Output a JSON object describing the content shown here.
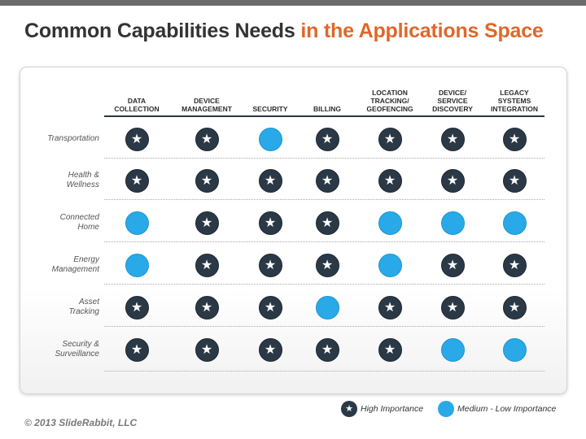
{
  "title": {
    "part1": "Common Capabilities Needs",
    "part2": "in the Applications Space"
  },
  "columns": [
    {
      "label": "DATA\nCOLLECTION"
    },
    {
      "label": "DEVICE\nMANAGEMENT"
    },
    {
      "label": "SECURITY"
    },
    {
      "label": "BILLING"
    },
    {
      "label": "LOCATION\nTRACKING/\nGEOFENCING"
    },
    {
      "label": "DEVICE/\nSERVICE\nDISCOVERY"
    },
    {
      "label": "LEGACY\nSYSTEMS\nINTEGRATION"
    }
  ],
  "rows": [
    {
      "label": "Transportation",
      "values": [
        "high",
        "high",
        "medium",
        "high",
        "high",
        "high",
        "high"
      ]
    },
    {
      "label": "Health &\nWellness",
      "values": [
        "high",
        "high",
        "high",
        "high",
        "high",
        "high",
        "high"
      ]
    },
    {
      "label": "Connected\nHome",
      "values": [
        "medium",
        "high",
        "high",
        "high",
        "medium",
        "medium",
        "medium"
      ]
    },
    {
      "label": "Energy\nManagement",
      "values": [
        "medium",
        "high",
        "high",
        "high",
        "medium",
        "high",
        "high"
      ]
    },
    {
      "label": "Asset\nTracking",
      "values": [
        "high",
        "high",
        "high",
        "medium",
        "high",
        "high",
        "high"
      ]
    },
    {
      "label": "Security &\nSurveillance",
      "values": [
        "high",
        "high",
        "high",
        "high",
        "high",
        "medium",
        "medium"
      ]
    }
  ],
  "legend": {
    "high_label": "High Importance",
    "medium_label": "Medium - Low Importance"
  },
  "icons": {
    "high": "star-icon",
    "medium": "circle-icon"
  },
  "colors": {
    "high": "#2b3947",
    "medium": "#29a9e7",
    "title_accent": "#e0672a"
  },
  "footer": {
    "copyright": "© 2013 SlideRabbit, LLC"
  }
}
